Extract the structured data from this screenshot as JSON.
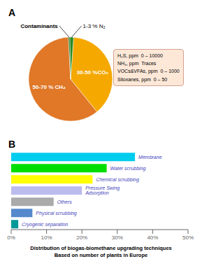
{
  "chart_data": [
    {
      "type": "pie",
      "title": "A",
      "categories": [
        "50-70 % CH₄",
        "30-50 %CO₂",
        "1-3 % N₂",
        "Contaminants"
      ],
      "values": [
        60,
        38,
        1.5,
        0.5
      ],
      "colors": [
        "#E07828",
        "#F5A800",
        "#2A8B22",
        "#006400"
      ],
      "annotations": [
        "H₂S, ppm  0 – 10000",
        "NH₃, ppm  Traces",
        "VOCs&VFAs, ppm  0 – 1000",
        "Siloxanes, ppm  0 – 50"
      ]
    },
    {
      "type": "bar",
      "title": "B",
      "orientation": "horizontal",
      "categories": [
        "Membrane",
        "Water scrubbing",
        "Chemical scrubbing",
        "Pressure Swing Adsorption",
        "Others",
        "Physical scrubbing",
        "Cryogenic separation"
      ],
      "values": [
        35,
        27,
        23,
        20,
        12,
        6,
        2
      ],
      "colors": [
        "#00CCEE",
        "#00DD00",
        "#FFFF00",
        "#BBBBEE",
        "#AAAAAA",
        "#5588CC",
        "#009999"
      ],
      "xlim": [
        0,
        50
      ],
      "xticks": [
        {
          "value": 0,
          "label": "0%"
        },
        {
          "value": 10,
          "label": "10%"
        },
        {
          "value": 20,
          "label": "20%"
        },
        {
          "value": 30,
          "label": "30%"
        },
        {
          "value": 40,
          "label": "40%"
        },
        {
          "value": 50,
          "label": "50%"
        }
      ],
      "xlabel": "Distribution of biogas-biomethane upgrading techniques\nBased on number of plants in Europe",
      "tick_labels": "x",
      "grid": false
    }
  ]
}
